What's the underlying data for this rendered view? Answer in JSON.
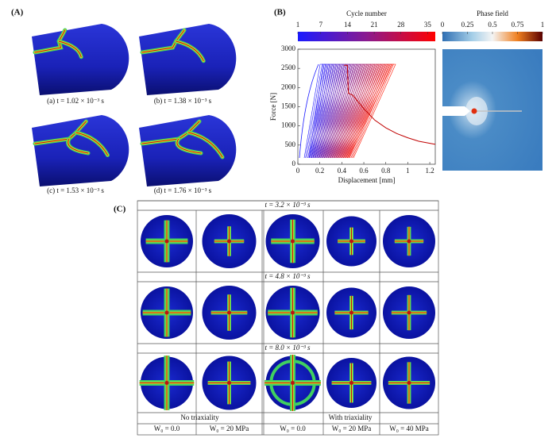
{
  "panel_a": {
    "label": "(A)",
    "captions": [
      "(a) t = 1.02 × 10⁻³ s",
      "(b) t = 1.38 × 10⁻³ s",
      "(c) t = 1.53 × 10⁻³ s",
      "(d) t = 1.76 × 10⁻³ s"
    ]
  },
  "panel_b": {
    "label": "(B)",
    "cycle_colorbar": {
      "title": "Cycle number",
      "lim": [
        1,
        37
      ],
      "ticks": [
        1,
        7,
        14,
        21,
        28,
        35
      ]
    },
    "phase_colorbar": {
      "title": "Phase field",
      "lim": [
        0,
        1
      ],
      "ticks": [
        0,
        0.25,
        0.5,
        0.75,
        1
      ]
    }
  },
  "chart_data": {
    "type": "line",
    "xlabel": "Displacement [mm]",
    "ylabel": "Force [N]",
    "color": "#c00000",
    "x": [
      0.42,
      0.45,
      0.46,
      0.5,
      0.6,
      0.7,
      0.8,
      0.9,
      1.0,
      1.1,
      1.25
    ],
    "values": [
      2580,
      2580,
      1850,
      1800,
      1450,
      1150,
      950,
      800,
      690,
      600,
      520
    ],
    "xlim": [
      0,
      1.25
    ],
    "ylim": [
      0,
      3000
    ],
    "xticks": [
      0,
      0.2,
      0.4,
      0.6,
      0.8,
      1,
      1.2
    ],
    "yticks": [
      0,
      500,
      1000,
      1500,
      2000,
      2500,
      3000
    ]
  },
  "panel_c": {
    "label": "(C)",
    "times": [
      "t = 3.2 × 10⁻³ s",
      "t = 4.8 × 10⁻³ s",
      "t = 8.0 × 10⁻³ s"
    ],
    "groups": [
      "No triaxiality",
      "With triaxiality"
    ],
    "columns": [
      "W₀ = 0.0",
      "W₀ = 20 MPa",
      "W₀ = 0.0",
      "W₀ = 20 MPa",
      "W₀ = 40 MPa"
    ]
  }
}
